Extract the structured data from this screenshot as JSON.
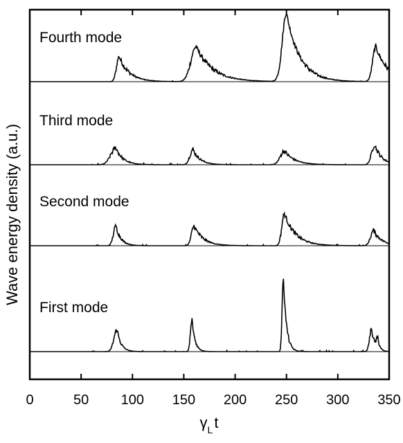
{
  "chart_data": {
    "type": "line",
    "title": "",
    "xlabel_main": "γ",
    "xlabel_sub": "L",
    "xlabel_tail": "t",
    "ylabel": "Wave energy density (a.u.)",
    "xlim": [
      0,
      350
    ],
    "xticks": [
      0,
      50,
      100,
      150,
      200,
      250,
      300,
      350
    ],
    "xtick_labels": [
      "0",
      "50",
      "100",
      "150",
      "200",
      "250",
      "300",
      "350"
    ],
    "ylim": [
      0,
      1
    ],
    "panels": [
      {
        "name": "Fourth mode",
        "peaks": [
          {
            "x": 87,
            "height": 0.33,
            "rise": 2.5,
            "decay": 10
          },
          {
            "x": 162,
            "height": 0.46,
            "rise": 5,
            "decay": 16
          },
          {
            "x": 250,
            "height": 0.9,
            "rise": 4,
            "decay": 13
          },
          {
            "x": 337,
            "height": 0.46,
            "rise": 3,
            "decay": 12
          }
        ]
      },
      {
        "name": "Third mode",
        "peaks": [
          {
            "x": 84,
            "height": 0.22,
            "rise": 5,
            "decay": 7
          },
          {
            "x": 159,
            "height": 0.2,
            "rise": 3,
            "decay": 7
          },
          {
            "x": 248,
            "height": 0.18,
            "rise": 4,
            "decay": 10
          },
          {
            "x": 336,
            "height": 0.26,
            "rise": 3,
            "decay": 7
          }
        ]
      },
      {
        "name": "Second mode",
        "peaks": [
          {
            "x": 84,
            "height": 0.26,
            "rise": 2.5,
            "decay": 5
          },
          {
            "x": 160,
            "height": 0.26,
            "rise": 2.5,
            "decay": 9
          },
          {
            "x": 248,
            "height": 0.42,
            "rise": 2.5,
            "decay": 11
          },
          {
            "x": 335,
            "height": 0.2,
            "rise": 3,
            "decay": 8
          }
        ]
      },
      {
        "name": "First mode",
        "peaks": [
          {
            "x": 85,
            "height": 0.29,
            "rise": 3,
            "decay": 4
          },
          {
            "x": 158,
            "height": 0.42,
            "rise": 1.5,
            "decay": 3
          },
          {
            "x": 247,
            "height": 0.98,
            "rise": 1.2,
            "decay": 3
          },
          {
            "x": 333,
            "height": 0.3,
            "rise": 2,
            "decay": 3
          },
          {
            "x": 339,
            "height": 0.14,
            "rise": 1.5,
            "decay": 2
          }
        ]
      }
    ]
  }
}
